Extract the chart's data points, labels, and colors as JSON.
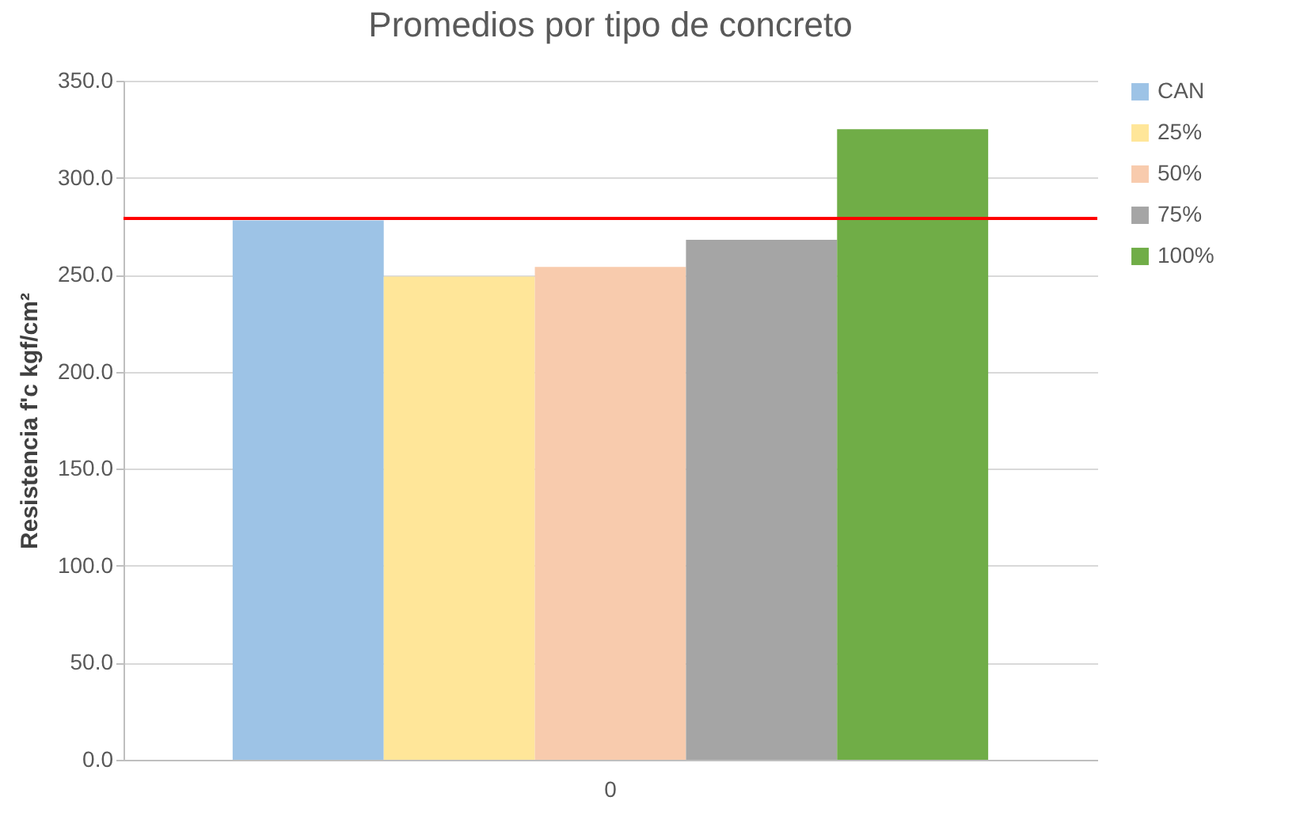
{
  "chart_data": {
    "type": "bar",
    "title": "Promedios por tipo de concreto",
    "ylabel": "Resistencia f'c kgf/cm²",
    "categories": [
      "0"
    ],
    "series": [
      {
        "name": "CAN",
        "color": "#9dc3e6",
        "values": [
          278
        ]
      },
      {
        "name": "25%",
        "color": "#ffe699",
        "values": [
          249
        ]
      },
      {
        "name": "50%",
        "color": "#f8cbad",
        "values": [
          254
        ]
      },
      {
        "name": "75%",
        "color": "#a5a5a5",
        "values": [
          268
        ]
      },
      {
        "name": "100%",
        "color": "#70ad47",
        "values": [
          325
        ]
      }
    ],
    "ylim": [
      0,
      350
    ],
    "yticks": [
      {
        "value": 0,
        "label": "0.0"
      },
      {
        "value": 50,
        "label": "50.0"
      },
      {
        "value": 100,
        "label": "100.0"
      },
      {
        "value": 150,
        "label": "150.0"
      },
      {
        "value": 200,
        "label": "200.0"
      },
      {
        "value": 250,
        "label": "250.0"
      },
      {
        "value": 300,
        "label": "300.0"
      },
      {
        "value": 350,
        "label": "350.0"
      }
    ],
    "ref_lines": [
      {
        "axis": "y",
        "value": 279,
        "color": "#ff0000"
      }
    ],
    "grid": "y",
    "legend": "right"
  }
}
